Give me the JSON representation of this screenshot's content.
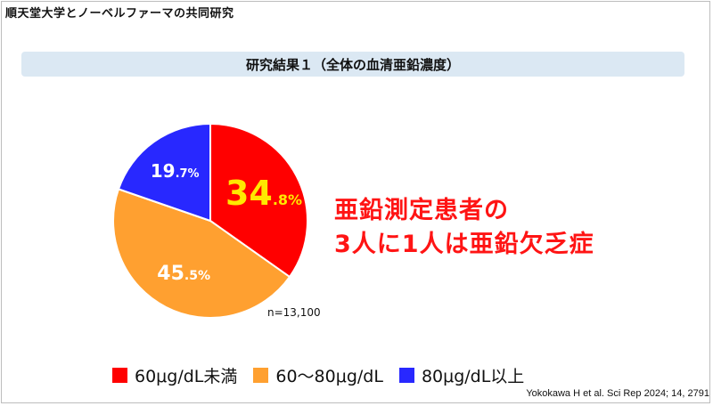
{
  "header": {
    "title": "順天堂大学とノーベルファーマの共同研究"
  },
  "slide": {
    "title": "研究結果１（全体の血清亜鉛濃度）",
    "n_label": "n=13,100",
    "callout_line1": "亜鉛測定患者の",
    "callout_line2": "3人に1人は亜鉛欠乏症",
    "citation": "Yokokawa H et al. Sci Rep 2024; 14, 2791"
  },
  "chart_data": {
    "type": "pie",
    "title": "",
    "slices": [
      {
        "label": "60μg/dL未満",
        "value": 34.8,
        "color": "#ff0000",
        "major": "34",
        "minor": ".8%",
        "text_color": "#ffe800"
      },
      {
        "label": "60〜80μg/dL",
        "value": 45.5,
        "color": "#ffa030",
        "major": "45",
        "minor": ".5%",
        "text_color": "#ffffff"
      },
      {
        "label": "80μg/dL以上",
        "value": 19.7,
        "color": "#2828ff",
        "major": "19",
        "minor": ".7%",
        "text_color": "#ffffff"
      }
    ],
    "legend": [
      "60μg/dL未満",
      "60〜80μg/dL",
      "80μg/dL以上"
    ],
    "legend_position": "bottom"
  }
}
